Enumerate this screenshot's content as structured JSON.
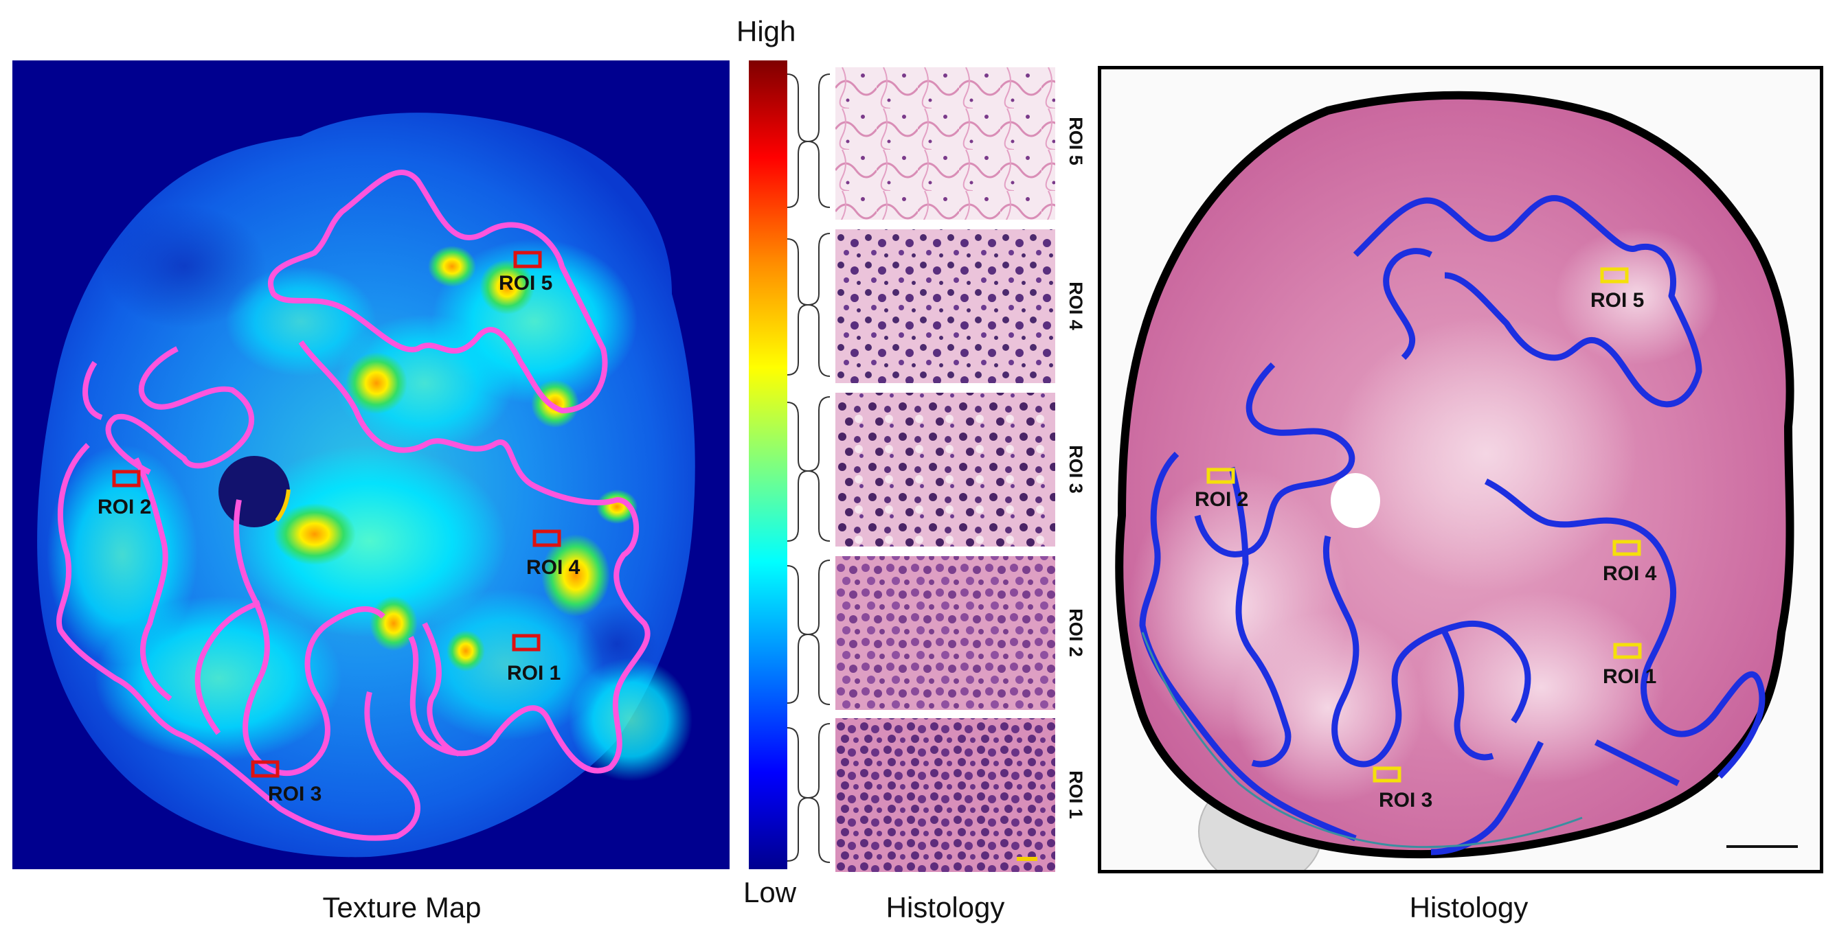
{
  "panels": {
    "texture_map": {
      "caption": "Texture Map",
      "roi_labels": [
        "ROI 1",
        "ROI 2",
        "ROI 3",
        "ROI 4",
        "ROI 5"
      ]
    },
    "colorbar": {
      "high_label": "High",
      "low_label": "Low"
    },
    "histology_strips": {
      "caption": "Histology",
      "strip_labels": [
        "ROI 5",
        "ROI 4",
        "ROI 3",
        "ROI 2",
        "ROI 1"
      ]
    },
    "histology_slide": {
      "caption": "Histology",
      "roi_labels": [
        "ROI 1",
        "ROI 2",
        "ROI 3",
        "ROI 4",
        "ROI 5"
      ]
    }
  },
  "colors": {
    "texture_background": "#00008f",
    "texture_contour": "#ff55dd",
    "texture_roi_box": "#dd1111",
    "histology_tissue": "#cf6fa3",
    "histology_contour": "#1c2fe0",
    "histology_roi_box": "#f5e00a",
    "slide_border": "#000000"
  }
}
